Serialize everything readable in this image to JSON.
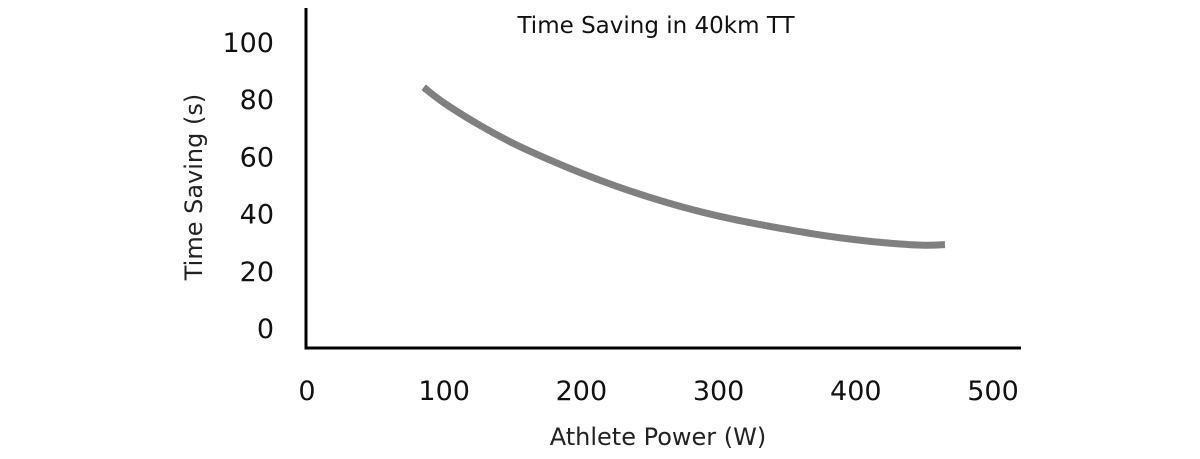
{
  "chart_data": {
    "type": "line",
    "title": "Time Saving in 40km TT",
    "xlabel": "Athlete Power (W)",
    "ylabel": "Time Saving (s)",
    "xlim": [
      0,
      500
    ],
    "ylim": [
      0,
      100
    ],
    "x_ticks": [
      "0",
      "100",
      "200",
      "300",
      "400",
      "500"
    ],
    "y_ticks": [
      "0",
      "20",
      "40",
      "60",
      "80",
      "100"
    ],
    "grid": false,
    "legend": "none",
    "line_color": "#808080",
    "series": [
      {
        "x": [
          85,
          100,
          125,
          150,
          175,
          200,
          225,
          250,
          275,
          300,
          325,
          350,
          375,
          400,
          425,
          450,
          465
        ],
        "y": [
          84.5,
          79.0,
          71.5,
          65.0,
          59.5,
          54.5,
          50.0,
          46.0,
          42.5,
          39.5,
          37.0,
          34.8,
          32.8,
          31.2,
          30.0,
          29.3,
          29.5
        ]
      }
    ]
  }
}
